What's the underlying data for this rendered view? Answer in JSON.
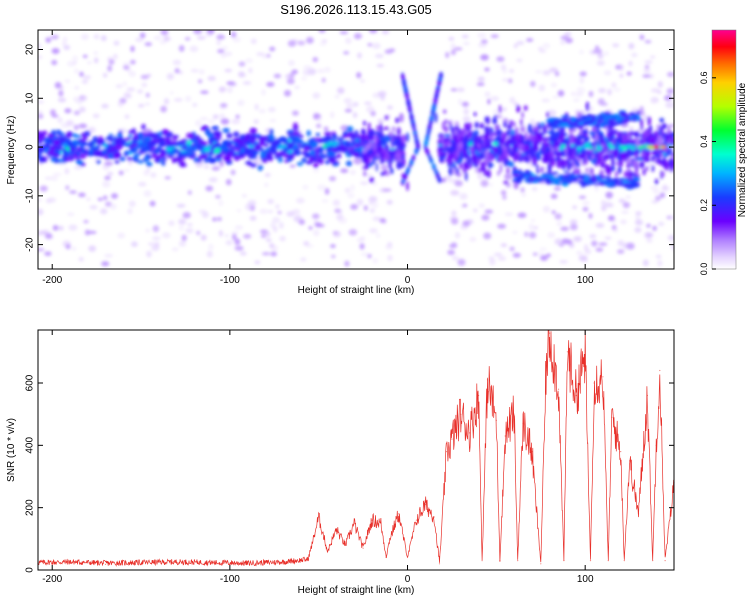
{
  "figure_title": "S196.2026.113.15.43.G05",
  "chart_data": [
    {
      "type": "heatmap",
      "title": "S196.2026.113.15.43.G05",
      "xlabel": "Height of straight line (km)",
      "ylabel": "Frequency (Hz)",
      "xlim": [
        -208,
        150
      ],
      "ylim": [
        -25,
        24
      ],
      "x_ticks": [
        -200,
        -100,
        0,
        100
      ],
      "x_tick_labels": [
        "-200",
        "-100",
        "0",
        "100"
      ],
      "y_ticks": [
        20,
        10,
        0,
        -10,
        -20
      ],
      "y_tick_labels": [
        "20",
        "10",
        "0",
        "-10",
        "-20"
      ],
      "colorbar": {
        "label": "Normalized spectral amplitude",
        "range": [
          0.0,
          0.75
        ],
        "ticks": [
          0.0,
          0.2,
          0.4,
          0.6
        ],
        "tick_labels": [
          "0.0",
          "0.2",
          "0.4",
          "0.6"
        ],
        "colormap": [
          "#ffffff",
          "#c9a6ff",
          "#7a00ff",
          "#2020ff",
          "#00e0ff",
          "#00ff40",
          "#c8ff00",
          "#ff8800",
          "#ff0000",
          "#ff0090"
        ]
      },
      "features": [
        {
          "name": "main band",
          "x_range": [
            -208,
            150
          ],
          "freq_center": 0,
          "half_width_hz": 4
        },
        {
          "name": "upper sideband",
          "x_range": [
            80,
            130
          ],
          "freq_center": 5
        },
        {
          "name": "lower sideband",
          "x_range": [
            60,
            130
          ],
          "freq_center": -6
        },
        {
          "name": "peak",
          "x": 140,
          "freq": 0,
          "amplitude": 0.7
        }
      ]
    },
    {
      "type": "line",
      "xlabel": "Height of straight line (km)",
      "ylabel": "SNR (10 * v/v)",
      "xlim": [
        -208,
        150
      ],
      "ylim": [
        0,
        770
      ],
      "x_ticks": [
        -200,
        -100,
        0,
        100
      ],
      "x_tick_labels": [
        "-200",
        "-100",
        "0",
        "100"
      ],
      "y_ticks": [
        0,
        200,
        400,
        600
      ],
      "y_tick_labels": [
        "0",
        "200",
        "400",
        "600"
      ],
      "series": [
        {
          "name": "SNR",
          "color": "#e8302a",
          "x": [
            -208,
            -190,
            -170,
            -150,
            -130,
            -110,
            -90,
            -70,
            -56,
            -50,
            -45,
            -40,
            -35,
            -30,
            -25,
            -20,
            -15,
            -12,
            -10,
            -5,
            0,
            5,
            10,
            15,
            18,
            22,
            25,
            30,
            35,
            40,
            42,
            45,
            50,
            52,
            55,
            60,
            62,
            65,
            70,
            75,
            78,
            80,
            85,
            88,
            90,
            95,
            100,
            103,
            105,
            110,
            113,
            115,
            120,
            122,
            125,
            130,
            135,
            138,
            140,
            142,
            145,
            150
          ],
          "values": [
            20,
            22,
            18,
            20,
            22,
            20,
            18,
            22,
            30,
            170,
            60,
            130,
            80,
            150,
            70,
            160,
            150,
            40,
            100,
            180,
            40,
            160,
            210,
            170,
            20,
            380,
            420,
            500,
            440,
            560,
            30,
            610,
            480,
            30,
            430,
            500,
            30,
            470,
            380,
            20,
            640,
            760,
            580,
            30,
            700,
            560,
            690,
            30,
            600,
            620,
            30,
            490,
            380,
            30,
            350,
            180,
            560,
            30,
            400,
            640,
            30,
            280
          ]
        }
      ]
    }
  ]
}
